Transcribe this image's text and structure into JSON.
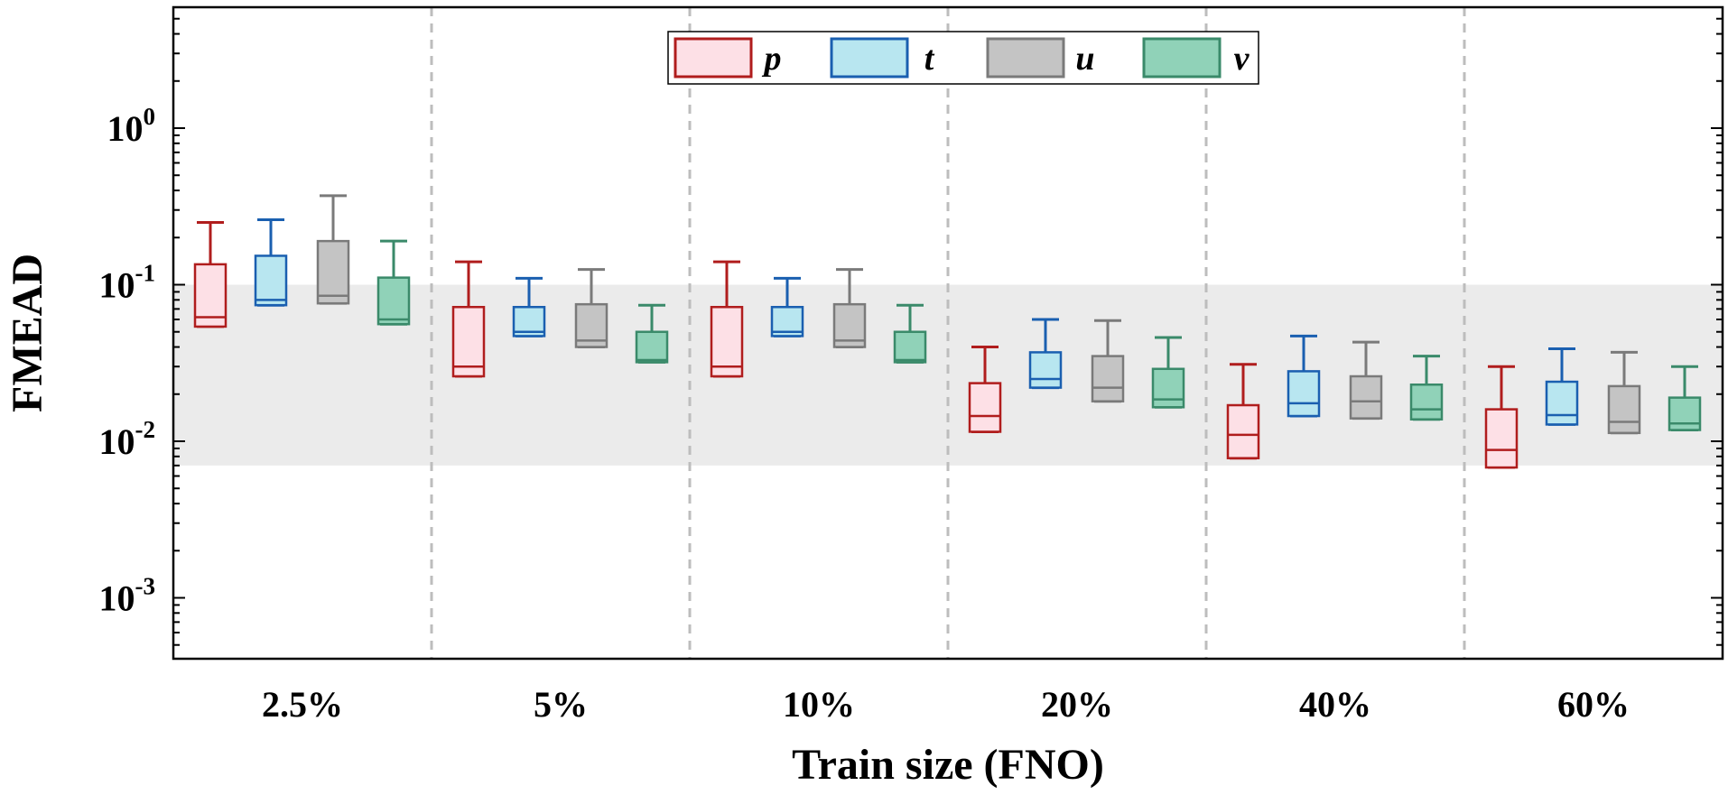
{
  "chart_data": {
    "type": "box",
    "xlabel": "Train size (FNO)",
    "ylabel": "FMEAD",
    "yscale": "log",
    "ylim": [
      0.0004,
      6
    ],
    "yticks": [
      {
        "value": 1,
        "base": "10",
        "exp": "0"
      },
      {
        "value": 0.1,
        "base": "10",
        "exp": "-1"
      },
      {
        "value": 0.01,
        "base": "10",
        "exp": "-2"
      },
      {
        "value": 0.001,
        "base": "10",
        "exp": "-3"
      }
    ],
    "shaded_band": [
      0.007,
      0.1
    ],
    "grid": false,
    "legend_position": "top-center",
    "categories": [
      "2.5%",
      "5%",
      "10%",
      "20%",
      "40%",
      "60%"
    ],
    "series": [
      {
        "name": "p",
        "edge": "#b01d1d",
        "fill": "#fde0e6",
        "boxes": [
          {
            "min": 0.054,
            "q1": 0.054,
            "median": 0.062,
            "q3": 0.135,
            "max": 0.25
          },
          {
            "min": 0.026,
            "q1": 0.026,
            "median": 0.03,
            "q3": 0.072,
            "max": 0.14
          },
          {
            "min": 0.026,
            "q1": 0.026,
            "median": 0.03,
            "q3": 0.072,
            "max": 0.14
          },
          {
            "min": 0.0115,
            "q1": 0.0115,
            "median": 0.0145,
            "q3": 0.0235,
            "max": 0.04
          },
          {
            "min": 0.0078,
            "q1": 0.0078,
            "median": 0.011,
            "q3": 0.017,
            "max": 0.031
          },
          {
            "min": 0.0068,
            "q1": 0.0068,
            "median": 0.0088,
            "q3": 0.016,
            "max": 0.03
          }
        ]
      },
      {
        "name": "t",
        "edge": "#1a5fb0",
        "fill": "#b8e6f0",
        "boxes": [
          {
            "min": 0.074,
            "q1": 0.074,
            "median": 0.08,
            "q3": 0.153,
            "max": 0.26
          },
          {
            "min": 0.047,
            "q1": 0.047,
            "median": 0.05,
            "q3": 0.072,
            "max": 0.11
          },
          {
            "min": 0.047,
            "q1": 0.047,
            "median": 0.05,
            "q3": 0.072,
            "max": 0.11
          },
          {
            "min": 0.022,
            "q1": 0.022,
            "median": 0.025,
            "q3": 0.037,
            "max": 0.06
          },
          {
            "min": 0.0145,
            "q1": 0.0145,
            "median": 0.0175,
            "q3": 0.028,
            "max": 0.047
          },
          {
            "min": 0.0128,
            "q1": 0.0128,
            "median": 0.0147,
            "q3": 0.024,
            "max": 0.039
          }
        ]
      },
      {
        "name": "u",
        "edge": "#7a7a7a",
        "fill": "#c4c4c4",
        "boxes": [
          {
            "min": 0.076,
            "q1": 0.076,
            "median": 0.085,
            "q3": 0.19,
            "max": 0.37
          },
          {
            "min": 0.04,
            "q1": 0.04,
            "median": 0.044,
            "q3": 0.075,
            "max": 0.125
          },
          {
            "min": 0.04,
            "q1": 0.04,
            "median": 0.044,
            "q3": 0.075,
            "max": 0.125
          },
          {
            "min": 0.018,
            "q1": 0.018,
            "median": 0.022,
            "q3": 0.035,
            "max": 0.059
          },
          {
            "min": 0.014,
            "q1": 0.014,
            "median": 0.018,
            "q3": 0.026,
            "max": 0.043
          },
          {
            "min": 0.0113,
            "q1": 0.0113,
            "median": 0.0133,
            "q3": 0.0225,
            "max": 0.037
          }
        ]
      },
      {
        "name": "v",
        "edge": "#3a8a6a",
        "fill": "#90d2b8",
        "boxes": [
          {
            "min": 0.056,
            "q1": 0.056,
            "median": 0.06,
            "q3": 0.111,
            "max": 0.19
          },
          {
            "min": 0.032,
            "q1": 0.032,
            "median": 0.033,
            "q3": 0.05,
            "max": 0.074
          },
          {
            "min": 0.032,
            "q1": 0.032,
            "median": 0.033,
            "q3": 0.05,
            "max": 0.074
          },
          {
            "min": 0.0165,
            "q1": 0.0165,
            "median": 0.0185,
            "q3": 0.029,
            "max": 0.046
          },
          {
            "min": 0.0138,
            "q1": 0.0138,
            "median": 0.016,
            "q3": 0.023,
            "max": 0.035
          },
          {
            "min": 0.0118,
            "q1": 0.0118,
            "median": 0.013,
            "q3": 0.019,
            "max": 0.03
          }
        ]
      }
    ]
  }
}
